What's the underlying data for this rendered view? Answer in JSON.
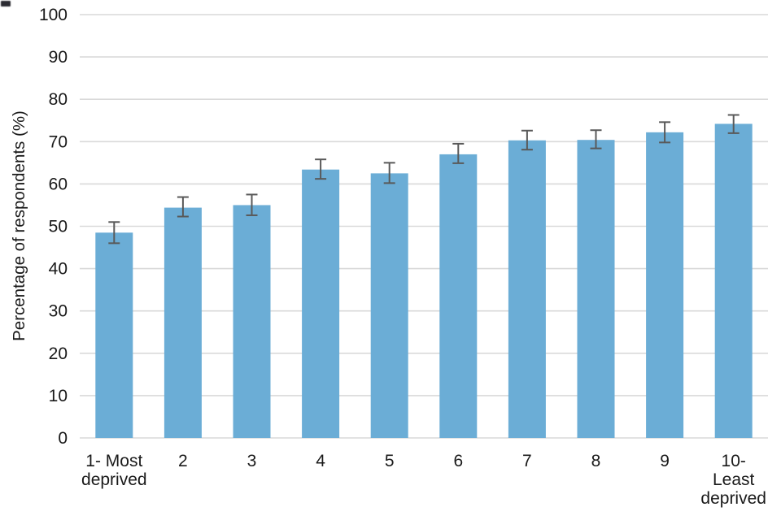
{
  "chart_data": {
    "type": "bar",
    "title": "",
    "ylabel": "Percentage of respondents (%)",
    "xlabel": "",
    "categories": [
      "1- Most deprived",
      "2",
      "3",
      "4",
      "5",
      "6",
      "7",
      "8",
      "9",
      "10- Least deprived"
    ],
    "categories_lines": [
      [
        "1- Most",
        "deprived"
      ],
      [
        "2"
      ],
      [
        "3"
      ],
      [
        "4"
      ],
      [
        "5"
      ],
      [
        "6"
      ],
      [
        "7"
      ],
      [
        "8"
      ],
      [
        "9"
      ],
      [
        "10-",
        "Least",
        "deprived"
      ]
    ],
    "values": [
      48.5,
      54.4,
      55.0,
      63.4,
      62.5,
      67.0,
      70.3,
      70.4,
      72.2,
      74.2
    ],
    "error_upper": [
      51.0,
      56.9,
      57.5,
      65.8,
      65.0,
      69.5,
      72.6,
      72.7,
      74.6,
      76.3
    ],
    "error_lower": [
      46.0,
      52.3,
      52.6,
      61.2,
      60.2,
      64.9,
      68.1,
      68.4,
      69.8,
      72.0
    ],
    "ylim": [
      0,
      100
    ],
    "yticks": [
      0,
      10,
      20,
      30,
      40,
      50,
      60,
      70,
      80,
      90,
      100
    ],
    "grid": true,
    "legend": "none",
    "bar_color": "#6BADD6",
    "error_bar_color": "#595959",
    "grid_color": "#D9D9D9",
    "text_color": "#1A1A1A"
  }
}
